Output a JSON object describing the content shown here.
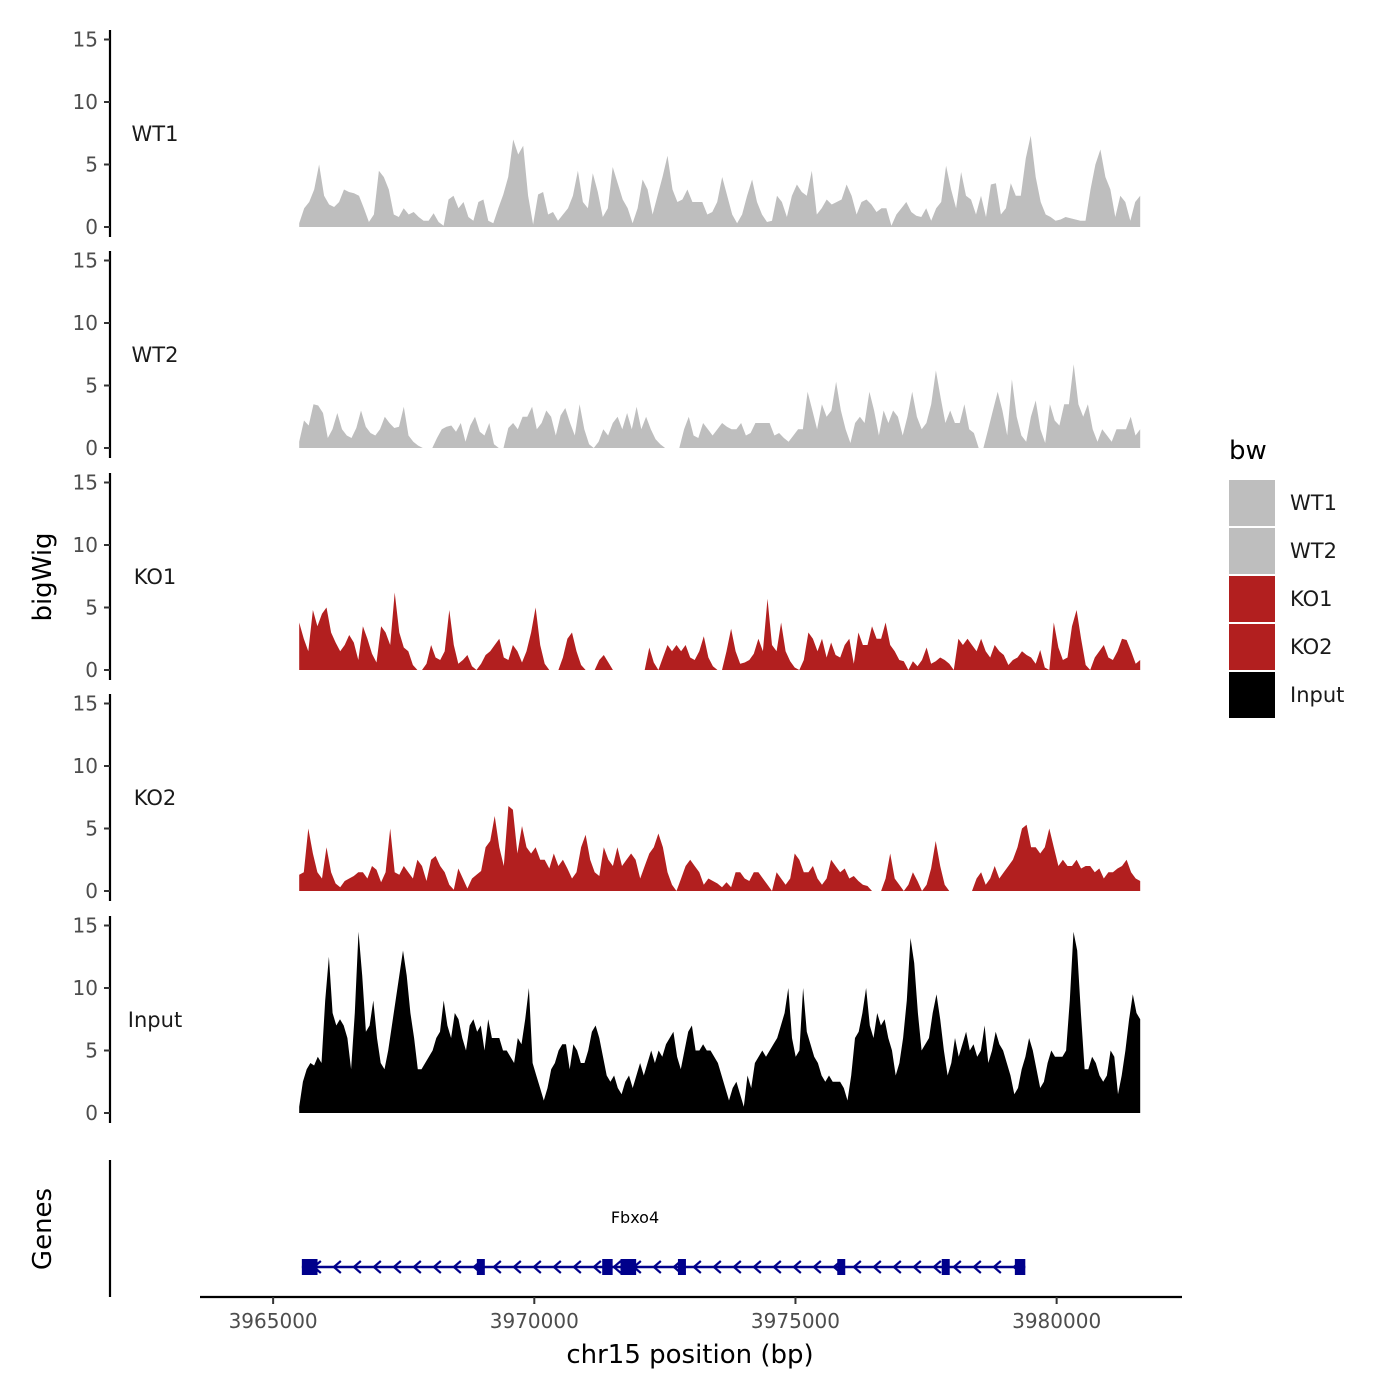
{
  "chart_data": {
    "type": "area",
    "ylabel": "bigWig",
    "xlabel": "chr15 position (bp)",
    "genes_label": "Genes",
    "x_range": [
      3965500,
      3981600
    ],
    "xlim": [
      3963600,
      3982400
    ],
    "ylim": [
      0,
      15
    ],
    "yticks": [
      0,
      5,
      10,
      15
    ],
    "xticks": [
      3965000,
      3970000,
      3975000,
      3980000
    ],
    "xtick_labels": [
      "3965000",
      "3970000",
      "3975000",
      "3980000"
    ],
    "legend": {
      "title": "bw",
      "entries": [
        {
          "label": "WT1",
          "color": "#bebebe"
        },
        {
          "label": "WT2",
          "color": "#bebebe"
        },
        {
          "label": "KO1",
          "color": "#b21f1f"
        },
        {
          "label": "KO2",
          "color": "#b21f1f"
        },
        {
          "label": "Input",
          "color": "#000000"
        }
      ]
    },
    "series": [
      {
        "name": "WT1",
        "color": "#bebebe",
        "values": [
          0.3,
          1.5,
          2.0,
          3.0,
          5.0,
          2.5,
          1.8,
          1.6,
          2.0,
          3.0,
          2.8,
          2.7,
          2.5,
          1.5,
          0.4,
          1.0,
          4.5,
          4.0,
          3.0,
          1.0,
          0.8,
          1.5,
          1.0,
          1.2,
          0.8,
          0.5,
          0.5,
          1.1,
          0.4,
          0.1,
          2.2,
          2.5,
          1.5,
          2.0,
          0.8,
          0.5,
          2.0,
          2.2,
          0.5,
          0.3,
          1.5,
          2.6,
          4.0,
          7.0,
          5.8,
          6.5,
          2.5,
          0.2,
          2.6,
          2.8,
          1.0,
          1.2,
          0.5,
          1.0,
          1.5,
          2.5,
          4.5,
          2.0,
          1.5,
          4.3,
          2.8,
          0.8,
          1.5,
          4.8,
          3.5,
          2.2,
          1.5,
          0.3,
          1.5,
          3.8,
          3.0,
          1.0,
          2.5,
          4.0,
          5.7,
          3.0,
          2.0,
          2.2,
          3.0,
          2.0,
          2.0,
          2.0,
          1.0,
          1.2,
          2.0,
          4.0,
          2.5,
          1.0,
          0.3,
          1.0,
          2.5,
          3.8,
          2.0,
          1.0,
          0.4,
          0.5,
          2.5,
          2.0,
          0.8,
          2.5,
          3.4,
          2.8,
          2.5,
          4.5,
          1.0,
          1.5,
          2.2,
          1.8,
          2.0,
          2.2,
          3.4,
          2.5,
          1.0,
          2.0,
          2.2,
          1.8,
          1.2,
          1.5,
          1.5,
          0.1,
          1.0,
          1.5,
          2.0,
          1.2,
          0.9,
          0.8,
          1.5,
          0.5,
          1.5,
          2.0,
          4.9,
          3.0,
          1.5,
          4.4,
          2.5,
          2.2,
          1.0,
          2.5,
          0.8,
          3.4,
          3.5,
          1.0,
          1.5,
          3.5,
          2.5,
          2.5,
          5.5,
          7.3,
          4.0,
          2.0,
          1.0,
          0.8,
          0.5,
          0.6,
          0.8,
          0.7,
          0.6,
          0.5,
          0.5,
          3.0,
          5.0,
          6.2,
          4.0,
          3.0,
          0.8,
          2.5,
          2.0,
          0.5,
          2.0,
          2.5
        ]
      },
      {
        "name": "WT2",
        "color": "#bebebe",
        "values": [
          0.5,
          2.2,
          1.8,
          3.5,
          3.4,
          2.8,
          0.8,
          1.5,
          2.8,
          1.5,
          1.0,
          0.8,
          1.6,
          3.0,
          1.7,
          1.2,
          1.0,
          1.5,
          2.5,
          2.0,
          1.6,
          1.7,
          3.3,
          1.0,
          0.5,
          0.2,
          0,
          0,
          0,
          0.8,
          1.5,
          1.7,
          1.8,
          1.3,
          2.0,
          0.5,
          1.8,
          2.5,
          1.3,
          1.0,
          2.0,
          0.3,
          0,
          0,
          1.6,
          2.0,
          1.5,
          2.5,
          2.5,
          3.3,
          1.5,
          2.0,
          3.0,
          2.5,
          1.0,
          2.6,
          3.2,
          2.0,
          1.0,
          3.5,
          1.5,
          0.3,
          0,
          0.5,
          1.5,
          1.0,
          2.0,
          2.5,
          1.5,
          2.8,
          1.5,
          3.3,
          1.5,
          2.5,
          1.5,
          0.7,
          0.3,
          0,
          0,
          0,
          0,
          1.5,
          2.5,
          1.0,
          0.8,
          2.0,
          1.5,
          1.0,
          1.5,
          2.0,
          1.7,
          1.5,
          1.5,
          2.0,
          1.0,
          1.2,
          2.0,
          2.0,
          2.0,
          2.0,
          1.0,
          1.2,
          0.8,
          0.5,
          1.0,
          1.5,
          1.5,
          4.5,
          3.0,
          1.5,
          3.5,
          2.5,
          3.0,
          5.3,
          3.0,
          1.5,
          0.4,
          2.0,
          2.5,
          2.0,
          4.5,
          3.0,
          1.0,
          3.0,
          2.0,
          3.0,
          2.5,
          1.0,
          2.5,
          4.5,
          2.5,
          1.5,
          2.0,
          3.5,
          6.2,
          4.0,
          2.0,
          3.0,
          2.0,
          2.0,
          3.5,
          1.5,
          1.2,
          0,
          0,
          1.5,
          3.0,
          4.5,
          3.0,
          1.0,
          5.5,
          2.5,
          1.0,
          0.5,
          2.5,
          3.8,
          1.5,
          0.4,
          3.5,
          2.2,
          1.8,
          3.5,
          3.5,
          6.7,
          3.5,
          2.5,
          3.5,
          1.5,
          0.5,
          1.5,
          1.0,
          0.5,
          1.5,
          1.5,
          1.5,
          2.5,
          1.0,
          1.5
        ]
      },
      {
        "name": "KO1",
        "color": "#b21f1f",
        "values": [
          3.8,
          2.5,
          1.5,
          4.8,
          3.5,
          4.5,
          5.0,
          3.0,
          2.2,
          1.5,
          2.0,
          2.8,
          2.2,
          0.8,
          3.5,
          2.5,
          1.3,
          0.6,
          3.5,
          3.0,
          2.0,
          6.2,
          3.0,
          1.8,
          1.5,
          0.4,
          0,
          0,
          0.5,
          2.0,
          1.0,
          0.8,
          1.5,
          4.8,
          2.0,
          0.5,
          0.8,
          1.2,
          0.3,
          0,
          0.5,
          1.2,
          1.5,
          2.0,
          2.5,
          1.0,
          0.8,
          2.0,
          1.5,
          0.6,
          1.5,
          3.0,
          5.0,
          2.0,
          0.5,
          0,
          0,
          0,
          1.0,
          2.5,
          3.0,
          1.5,
          0.4,
          0,
          0,
          0,
          0.8,
          1.2,
          0.6,
          0,
          0,
          0,
          0,
          0,
          0,
          0,
          0,
          1.8,
          0.6,
          0,
          1.0,
          2.0,
          1.5,
          2.0,
          1.5,
          2.0,
          1.0,
          0.8,
          1.5,
          2.7,
          1.0,
          0.3,
          0,
          0,
          1.5,
          3.3,
          1.5,
          0.5,
          0.6,
          0.8,
          1.3,
          2.5,
          1.5,
          5.7,
          2.0,
          1.5,
          3.8,
          1.5,
          0.7,
          0.2,
          0,
          0.8,
          3.0,
          2.5,
          1.5,
          2.5,
          1.0,
          2.2,
          1.2,
          1.0,
          2.0,
          2.5,
          0.5,
          3.0,
          2.0,
          2.0,
          3.5,
          2.5,
          2.5,
          3.8,
          2.0,
          1.5,
          0.8,
          0.7,
          0,
          0.7,
          0.3,
          0.8,
          1.8,
          0.5,
          0.7,
          1.0,
          0.8,
          0.5,
          0,
          2.5,
          2.0,
          2.5,
          2.0,
          1.5,
          2.5,
          1.5,
          1.0,
          2.0,
          1.5,
          1.2,
          0.4,
          0.8,
          1.0,
          1.5,
          1.2,
          1.0,
          0.5,
          1.6,
          0.2,
          0,
          3.8,
          1.8,
          0.8,
          1.0,
          3.5,
          4.8,
          2.5,
          0.4,
          0,
          1.0,
          1.5,
          2.0,
          1.0,
          0.8,
          1.5,
          2.5,
          2.4,
          1.5,
          0.5,
          0.8
        ]
      },
      {
        "name": "KO2",
        "color": "#b21f1f",
        "values": [
          1.3,
          1.5,
          5.0,
          3.0,
          1.5,
          1.0,
          3.5,
          1.5,
          0.6,
          0.3,
          0.8,
          1.0,
          1.2,
          1.5,
          1.5,
          1.0,
          2.0,
          1.7,
          0.7,
          1.5,
          5.0,
          1.5,
          1.3,
          2.0,
          1.5,
          1.0,
          2.5,
          2.0,
          0.8,
          2.5,
          2.8,
          2.0,
          1.5,
          0.5,
          0.1,
          1.8,
          1.0,
          0.2,
          1.0,
          1.3,
          1.6,
          3.5,
          4.0,
          6.0,
          3.5,
          2.0,
          6.8,
          6.5,
          3.0,
          5.2,
          3.5,
          3.0,
          3.5,
          2.5,
          2.5,
          1.8,
          3.0,
          2.0,
          2.5,
          1.8,
          1.0,
          1.5,
          3.5,
          4.5,
          2.5,
          1.5,
          1.2,
          3.5,
          2.5,
          2.0,
          3.5,
          2.0,
          2.5,
          3.0,
          2.5,
          1.0,
          2.0,
          3.0,
          3.5,
          4.6,
          3.5,
          1.5,
          0.5,
          0,
          1.0,
          2.0,
          2.5,
          2.0,
          1.5,
          0.5,
          1.0,
          0.8,
          0.6,
          0.3,
          0.7,
          0.3,
          1.5,
          1.5,
          1.0,
          0.8,
          1.5,
          1.5,
          1.0,
          0.5,
          0,
          1.5,
          1.0,
          0.5,
          1.0,
          3.0,
          2.5,
          1.5,
          1.5,
          2.0,
          1.0,
          0.5,
          1.0,
          2.5,
          2.0,
          1.5,
          1.8,
          1.0,
          1.2,
          0.8,
          0.5,
          0.4,
          0,
          0,
          0,
          1.0,
          3.0,
          1.0,
          0.5,
          0,
          0.5,
          1.5,
          0.8,
          0,
          0.5,
          1.8,
          4.0,
          2.0,
          0.5,
          0,
          0,
          0,
          0,
          0,
          0,
          1.0,
          1.5,
          0.5,
          1.0,
          2.0,
          1.0,
          1.5,
          2.0,
          2.5,
          3.5,
          5.0,
          5.3,
          3.5,
          3.5,
          3.0,
          3.5,
          5.0,
          3.5,
          2.0,
          2.5,
          2.0,
          2.0,
          2.5,
          1.8,
          2.0,
          2.0,
          1.5,
          1.8,
          1.0,
          1.5,
          1.5,
          1.8,
          2.0,
          2.5,
          1.5,
          1.0,
          0.8
        ]
      },
      {
        "name": "Input",
        "color": "#000000",
        "values": [
          0.5,
          2.5,
          3.5,
          4.0,
          3.8,
          4.5,
          4.0,
          9.0,
          12.5,
          8.0,
          7.0,
          7.5,
          7.0,
          6.0,
          3.5,
          8.0,
          14.5,
          11.0,
          6.5,
          7.0,
          9.0,
          6.0,
          4.0,
          3.5,
          5.0,
          7.0,
          9.0,
          11.0,
          13.0,
          11.0,
          8.0,
          6.0,
          3.5,
          3.5,
          4.0,
          4.5,
          5.0,
          6.0,
          6.5,
          9.0,
          7.0,
          6.0,
          8.0,
          7.5,
          6.0,
          5.0,
          7.0,
          7.5,
          6.5,
          7.0,
          5.0,
          7.5,
          6.0,
          6.0,
          6.0,
          5.0,
          5.0,
          4.5,
          4.0,
          6.0,
          5.5,
          7.5,
          10.0,
          4.0,
          3.0,
          2.0,
          1.0,
          2.0,
          3.5,
          4.0,
          5.0,
          5.5,
          5.5,
          3.5,
          5.5,
          5.0,
          4.0,
          4.0,
          5.0,
          6.5,
          7.0,
          6.0,
          4.5,
          3.0,
          2.5,
          3.0,
          2.0,
          1.5,
          2.5,
          3.0,
          2.0,
          3.0,
          4.0,
          3.0,
          4.0,
          5.0,
          4.0,
          5.0,
          4.5,
          5.5,
          6.0,
          6.5,
          4.5,
          3.5,
          5.0,
          6.5,
          7.0,
          5.0,
          5.0,
          5.5,
          5.0,
          5.0,
          4.5,
          4.0,
          3.0,
          2.0,
          1.0,
          2.0,
          2.5,
          1.5,
          0.5,
          3.0,
          2.0,
          4.0,
          4.5,
          5.0,
          4.5,
          5.0,
          5.5,
          6.0,
          7.0,
          8.0,
          10.0,
          6.0,
          4.5,
          5.0,
          10.0,
          6.5,
          5.5,
          4.5,
          4.0,
          3.0,
          2.5,
          3.0,
          2.5,
          2.5,
          2.5,
          2.0,
          1.0,
          3.0,
          6.0,
          6.5,
          8.0,
          10.0,
          7.0,
          6.0,
          8.0,
          7.0,
          7.5,
          6.0,
          5.0,
          3.0,
          4.0,
          6.0,
          9.0,
          14.0,
          12.0,
          8.0,
          5.0,
          5.5,
          6.0,
          8.0,
          9.5,
          7.5,
          5.0,
          3.0,
          4.0,
          6.0,
          4.5,
          5.5,
          6.5,
          5.0,
          5.5,
          4.5,
          5.0,
          7.0,
          4.0,
          5.0,
          6.5,
          5.5,
          5.0,
          4.0,
          3.0,
          1.5,
          2.0,
          3.5,
          4.5,
          6.0,
          5.0,
          3.5,
          2.0,
          2.5,
          4.0,
          5.0,
          4.5,
          4.5,
          4.5,
          5.0,
          9.0,
          14.5,
          13.0,
          8.0,
          3.5,
          3.5,
          4.5,
          4.0,
          3.0,
          2.5,
          3.0,
          5.0,
          4.5,
          1.5,
          3.0,
          5.0,
          7.5,
          9.5,
          8.0,
          7.5
        ]
      }
    ],
    "gene": {
      "name": "Fbxo4",
      "start": 3965550,
      "end": 3979400,
      "strand": "-",
      "exons": [
        [
          3965550,
          3965850
        ],
        [
          3968900,
          3969050
        ],
        [
          3971300,
          3971500
        ],
        [
          3971650,
          3971950
        ],
        [
          3972750,
          3972900
        ],
        [
          3975800,
          3975950
        ],
        [
          3977800,
          3977950
        ],
        [
          3979200,
          3979400
        ]
      ]
    }
  }
}
